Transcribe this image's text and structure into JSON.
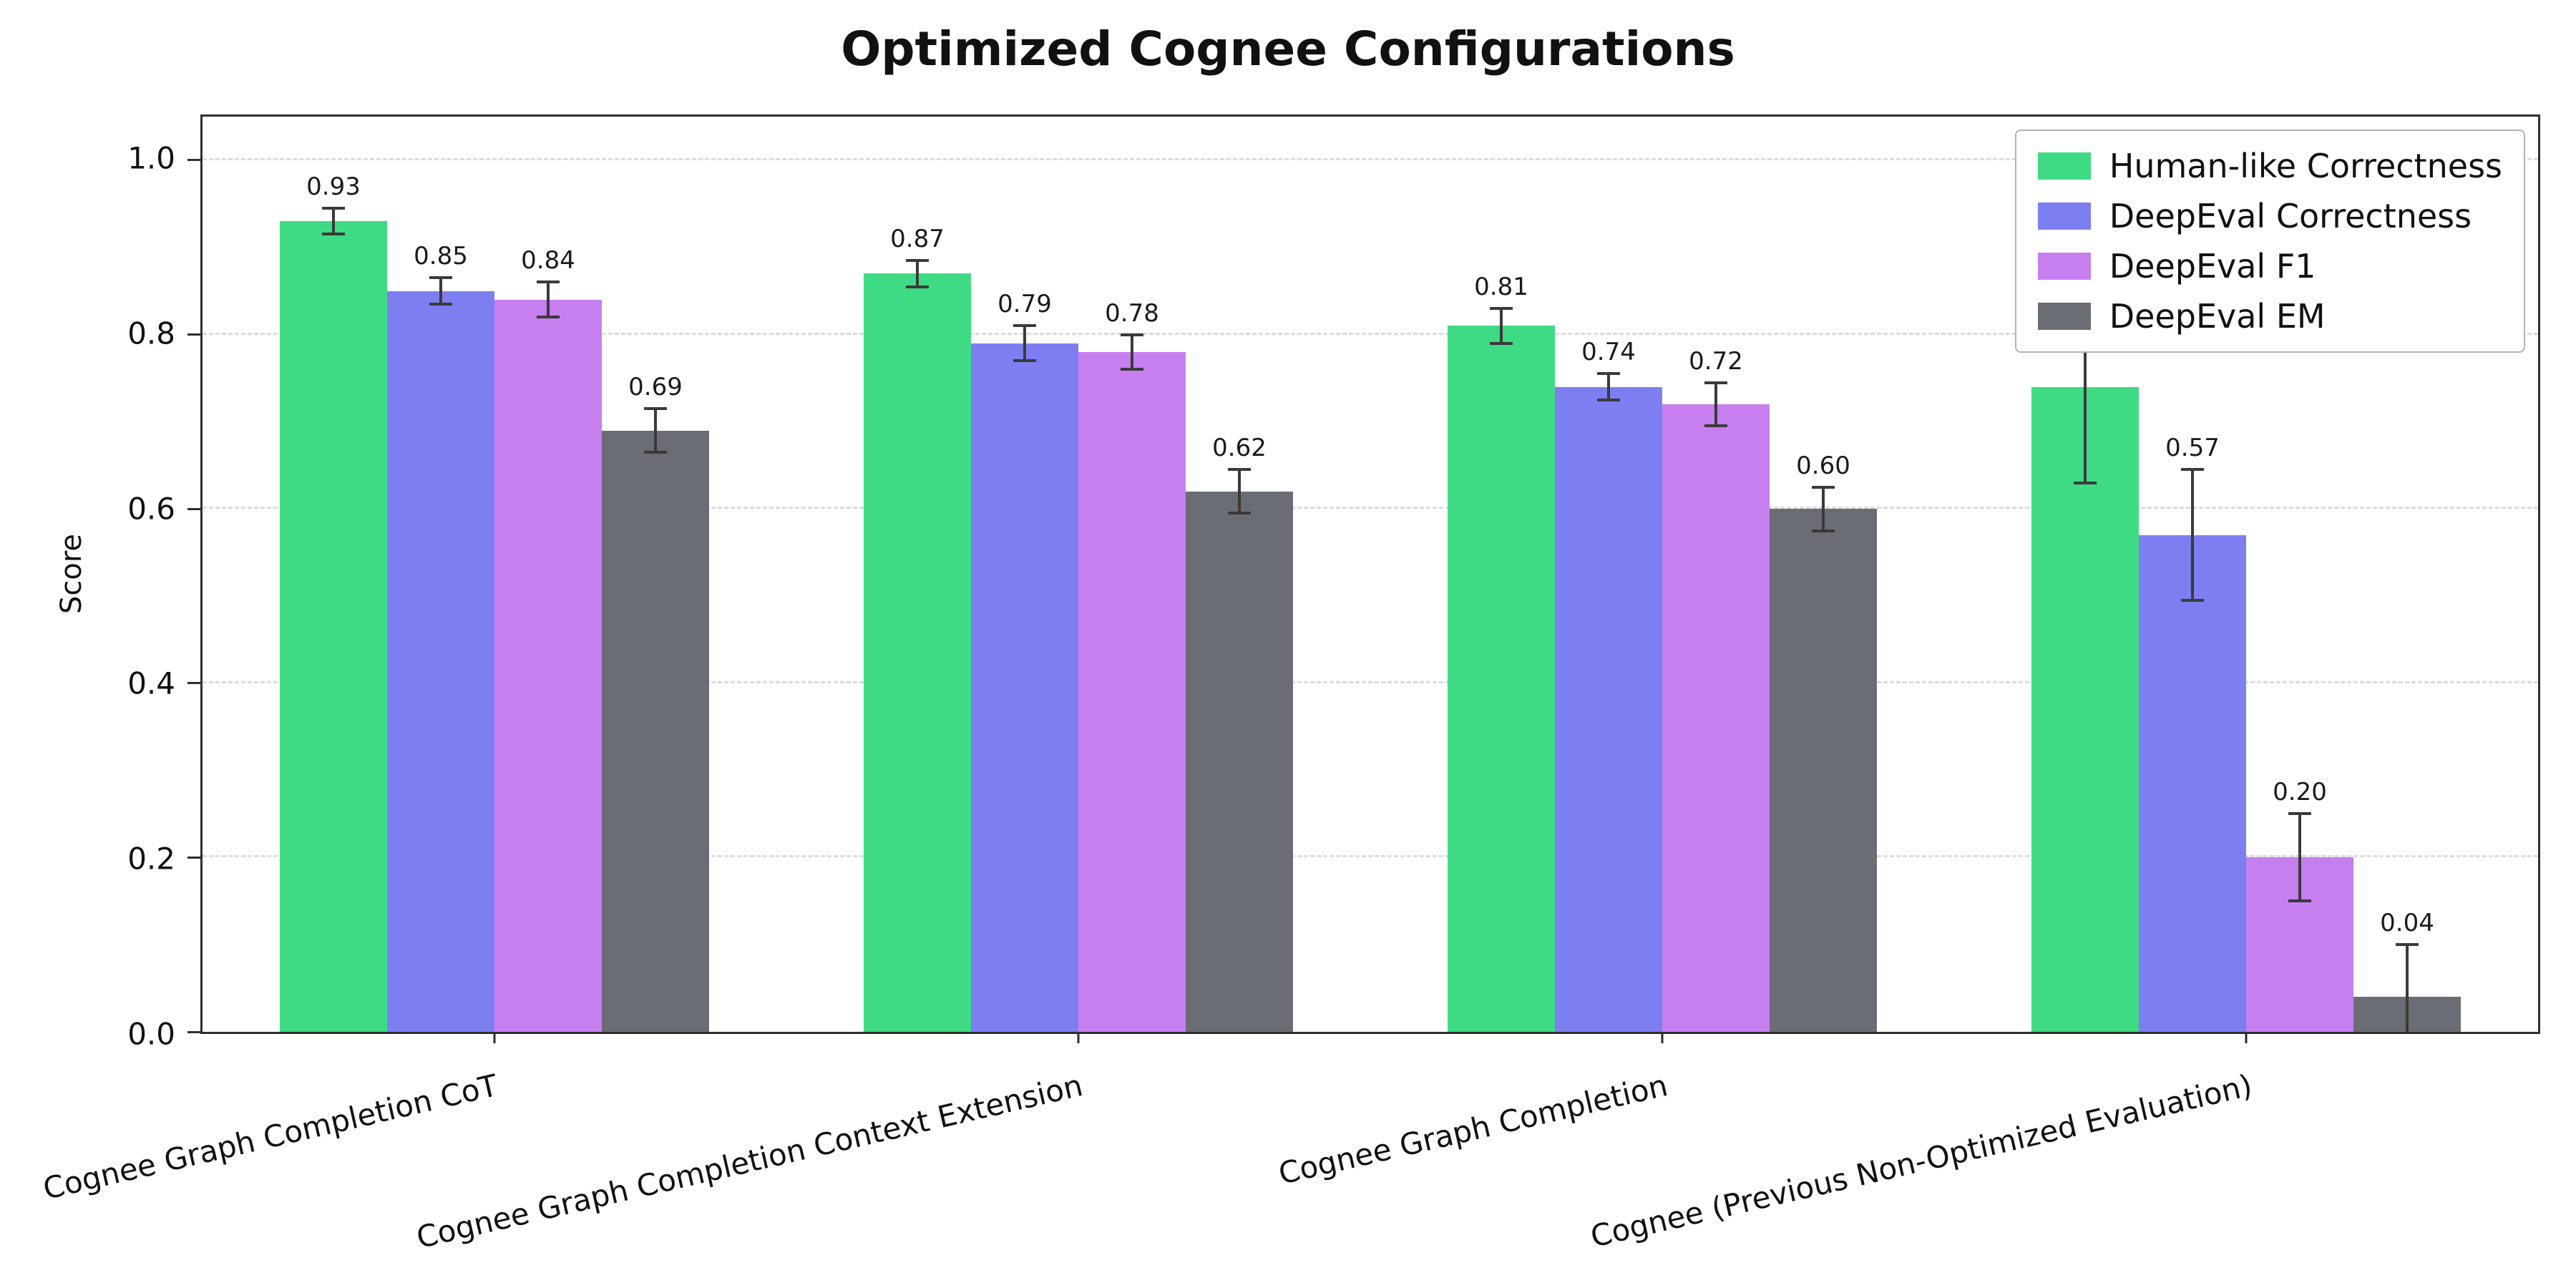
{
  "chart_data": {
    "type": "bar",
    "title": "Optimized Cognee Configurations",
    "xlabel": "",
    "ylabel": "Score",
    "ylim": [
      0,
      1.05
    ],
    "yticks": [
      0.0,
      0.2,
      0.4,
      0.6,
      0.8,
      1.0
    ],
    "grid": "horizontal dashed",
    "legend_position": "upper right",
    "error_bars": true,
    "categories": [
      "Cognee Graph Completion CoT",
      "Cognee Graph Completion Context Extension",
      "Cognee Graph Completion",
      "Cognee (Previous Non-Optimized Evaluation)"
    ],
    "series": [
      {
        "name": "Human-like Correctness",
        "color": "#3fdb84",
        "values": [
          0.93,
          0.87,
          0.81,
          0.74
        ],
        "errors": [
          0.015,
          0.015,
          0.02,
          0.11
        ]
      },
      {
        "name": "DeepEval Correctness",
        "color": "#7d7ff1",
        "values": [
          0.85,
          0.79,
          0.74,
          0.57
        ],
        "errors": [
          0.015,
          0.02,
          0.015,
          0.075
        ]
      },
      {
        "name": "DeepEval F1",
        "color": "#c77ff0",
        "values": [
          0.84,
          0.78,
          0.72,
          0.2
        ],
        "errors": [
          0.02,
          0.02,
          0.025,
          0.05
        ]
      },
      {
        "name": "DeepEval EM",
        "color": "#6b6d75",
        "values": [
          0.69,
          0.62,
          0.6,
          0.04
        ],
        "errors": [
          0.025,
          0.025,
          0.025,
          0.06
        ]
      }
    ]
  }
}
